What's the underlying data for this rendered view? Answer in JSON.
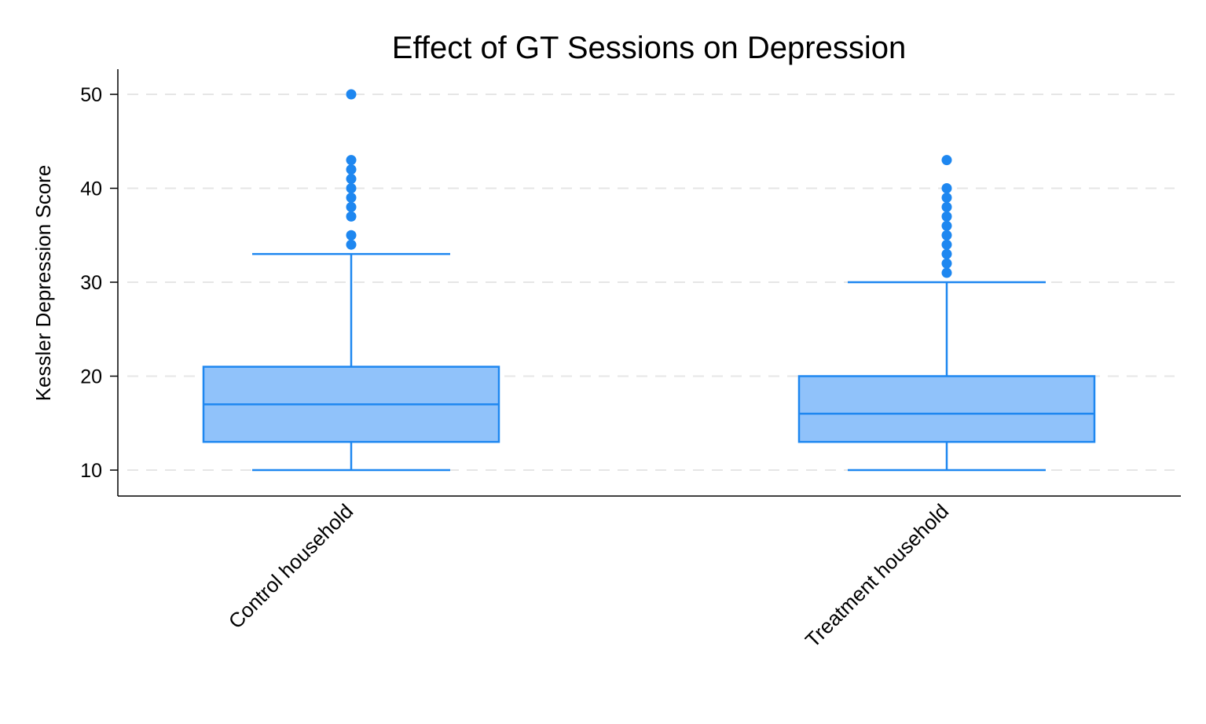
{
  "colors": {
    "box_fill": "#90c2fa",
    "box_stroke": "#1e87f0",
    "outlier": "#1e87f0",
    "grid": "#e6e6e6",
    "axis": "#000000"
  },
  "chart_data": {
    "type": "box",
    "title": "Effect of GT Sessions on Depression",
    "xlabel": "",
    "ylabel": "Kessler Depression Score",
    "ylim": [
      7.4,
      52.6
    ],
    "yticks": [
      10,
      20,
      30,
      40,
      50
    ],
    "grid": "horizontal dashed",
    "categories": [
      "Control household",
      "Treatment household"
    ],
    "series": [
      {
        "category": "Control household",
        "whisker_low": 10,
        "q1": 13,
        "median": 17,
        "q3": 21,
        "whisker_high": 33,
        "outliers": [
          34,
          35,
          37,
          38,
          39,
          40,
          41,
          42,
          43,
          50
        ]
      },
      {
        "category": "Treatment household",
        "whisker_low": 10,
        "q1": 13,
        "median": 16,
        "q3": 20,
        "whisker_high": 30,
        "outliers": [
          31,
          32,
          33,
          34,
          35,
          36,
          37,
          38,
          39,
          40,
          43
        ]
      }
    ]
  }
}
